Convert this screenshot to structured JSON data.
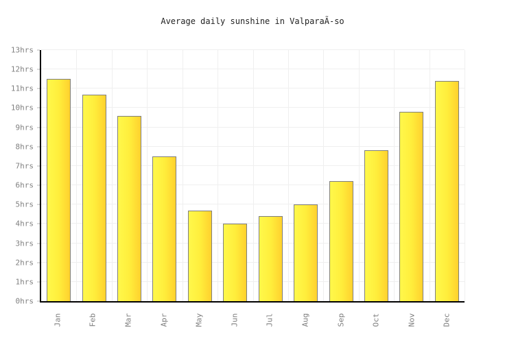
{
  "title": "Average daily sunshine in ValparaÃ-so",
  "chart_data": {
    "type": "bar",
    "title": "Average daily sunshine in ValparaÃ-so",
    "categories": [
      "Jan",
      "Feb",
      "Mar",
      "Apr",
      "May",
      "Jun",
      "Jul",
      "Aug",
      "Sep",
      "Oct",
      "Nov",
      "Dec"
    ],
    "values": [
      11.5,
      10.7,
      9.6,
      7.5,
      4.7,
      4.0,
      4.4,
      5.0,
      6.2,
      7.8,
      9.8,
      11.4
    ],
    "xlabel": "",
    "ylabel": "",
    "ylim": [
      0,
      13
    ],
    "y_tick_step": 1,
    "y_tick_labels": [
      "0hrs",
      "1hrs",
      "2hrs",
      "3hrs",
      "4hrs",
      "5hrs",
      "6hrs",
      "7hrs",
      "8hrs",
      "9hrs",
      "10hrs",
      "11hrs",
      "12hrs",
      "13hrs"
    ],
    "grid": true,
    "legend": "none",
    "colors": {
      "bar_gradient_left": "#fff84b",
      "bar_gradient_mid": "#ffee3c",
      "bar_gradient_right": "#ffd12e",
      "bar_border": "#7e7e7e",
      "gridline": "#efefef",
      "axis": "#000000",
      "tick_label": "#808080",
      "title_text": "#222222",
      "background": "#ffffff"
    }
  }
}
